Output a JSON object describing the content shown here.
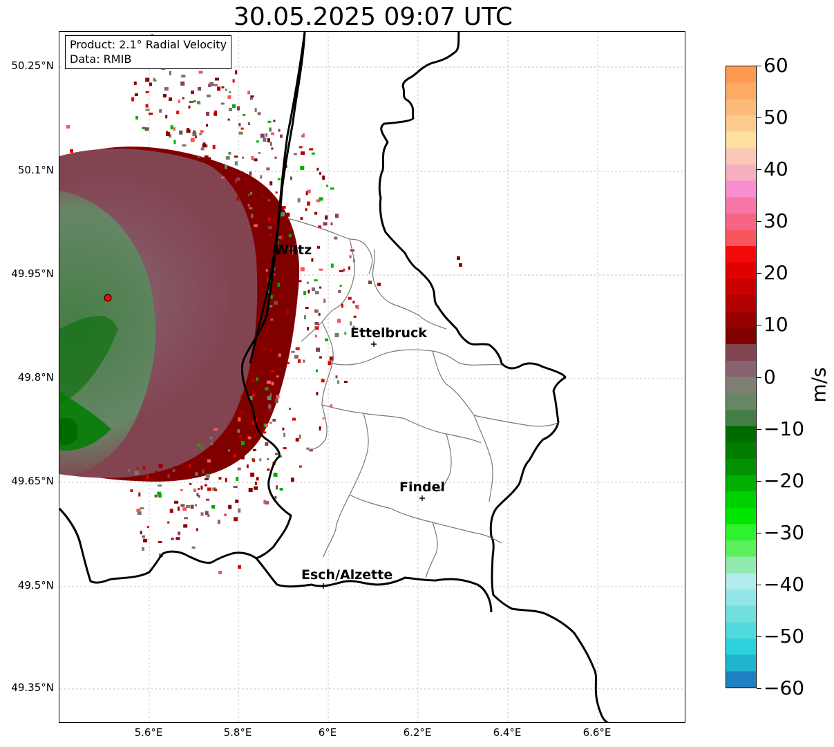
{
  "title": "30.05.2025 09:07 UTC",
  "infobox": {
    "line1": "Product: 2.1° Radial Velocity",
    "line2": "Data: RMIB"
  },
  "lat_ticks": [
    "50.25°N",
    "50.1°N",
    "49.95°N",
    "49.8°N",
    "49.65°N",
    "49.5°N",
    "49.35°N"
  ],
  "lon_ticks": [
    "5.6°E",
    "5.8°E",
    "6°E",
    "6.2°E",
    "6.4°E",
    "6.6°E"
  ],
  "cities": [
    {
      "name": "Wiltz"
    },
    {
      "name": "Ettelbruck"
    },
    {
      "name": "Findel"
    },
    {
      "name": "Esch/Alzette"
    }
  ],
  "colorbar": {
    "unit": "m/s",
    "tick_labels": [
      "60",
      "50",
      "40",
      "30",
      "20",
      "10",
      "0",
      "−10",
      "−20",
      "−30",
      "−40",
      "−50",
      "−60"
    ],
    "range": [
      -60,
      60
    ],
    "colors_top_to_bottom": [
      "#fd9a52",
      "#fdaa65",
      "#fdbb79",
      "#fdcb8d",
      "#fde0a0",
      "#f9c9b5",
      "#f6b0c0",
      "#f98ed1",
      "#f877a8",
      "#f76585",
      "#f7565d",
      "#f40a0a",
      "#e00000",
      "#c80000",
      "#b00000",
      "#980000",
      "#800000",
      "#834452",
      "#876470",
      "#7f7f73",
      "#668666",
      "#457e45",
      "#006b00",
      "#007d00",
      "#009000",
      "#00b000",
      "#00d000",
      "#00e600",
      "#2df22d",
      "#5cf05c",
      "#92eaae",
      "#b3ecec",
      "#94e5e5",
      "#72dfdf",
      "#50dadd",
      "#2cd3dd",
      "#21b4cf",
      "#1d80c0"
    ]
  },
  "radar_marker": {
    "color": "#ff0000"
  }
}
